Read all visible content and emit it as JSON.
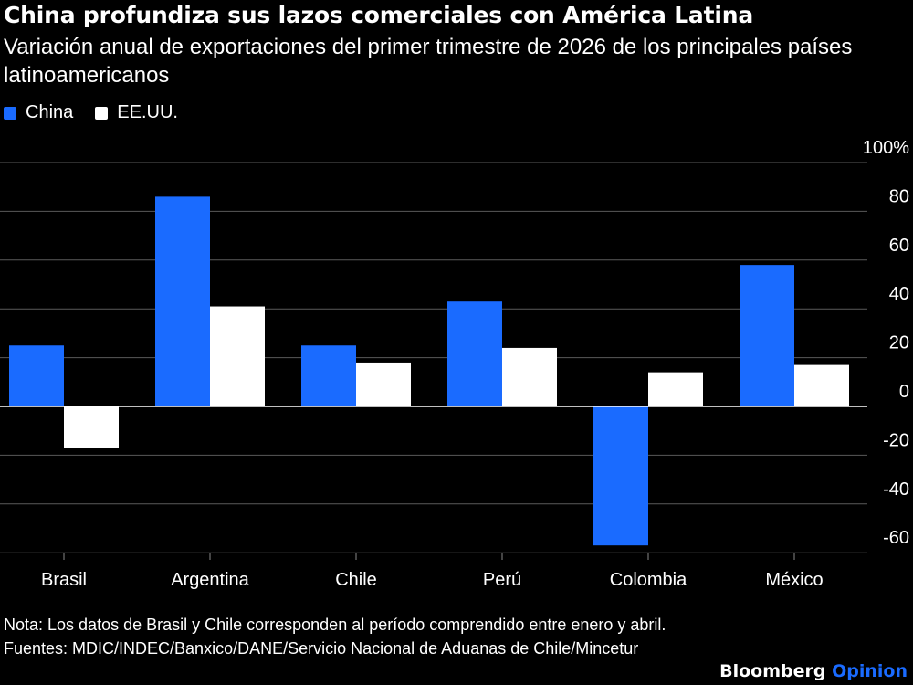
{
  "header": {
    "title": "China profundiza sus lazos comerciales con América Latina",
    "subtitle": "Variación anual de exportaciones del primer trimestre de 2026 de los principales países latinoamericanos"
  },
  "legend": [
    {
      "label": "China",
      "color": "#1a6bff"
    },
    {
      "label": "EE.UU.",
      "color": "#ffffff"
    }
  ],
  "chart_data": {
    "type": "bar",
    "categories": [
      "Brasil",
      "Argentina",
      "Chile",
      "Perú",
      "Colombia",
      "México"
    ],
    "series": [
      {
        "name": "China",
        "color": "#1a6bff",
        "values": [
          25,
          86,
          25,
          43,
          -57,
          58
        ]
      },
      {
        "name": "EE.UU.",
        "color": "#ffffff",
        "values": [
          -17,
          41,
          18,
          24,
          14,
          17
        ]
      }
    ],
    "yticks": [
      100,
      80,
      60,
      40,
      20,
      0,
      -20,
      -40,
      -60
    ],
    "ytick_labels": [
      "100%",
      "80",
      "60",
      "40",
      "20",
      "0",
      "-20",
      "-40",
      "-60"
    ],
    "ylim": [
      -60,
      100
    ],
    "grid": true
  },
  "footer": {
    "note": "Nota: Los datos de Brasil y Chile corresponden al período comprendido entre enero y abril.",
    "sources": "Fuentes: MDIC/INDEC/Banxico/DANE/Servicio Nacional de Aduanas de Chile/Mincetur",
    "brand_main": "Bloomberg",
    "brand_accent": "Opinion",
    "brand_accent_color": "#1a6bff"
  }
}
